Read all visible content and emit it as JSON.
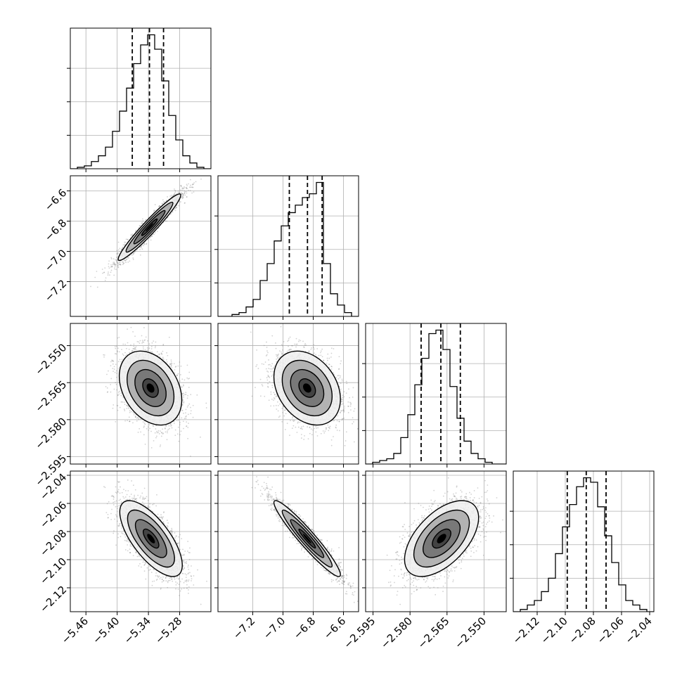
{
  "chart_data": {
    "type": "corner",
    "title": "",
    "legend": "none",
    "grid": true,
    "colors": {
      "hist": "#000000",
      "grid": "#b0b0b0",
      "axes": "#000000",
      "samples": "#7f7f7f"
    },
    "parameters": [
      {
        "id": "p1",
        "xlim": [
          -5.49,
          -5.22
        ],
        "ticks": [
          -5.46,
          -5.4,
          -5.34,
          -5.28
        ],
        "tick_labels": [
          "−5.46",
          "−5.40",
          "−5.34",
          "−5.28"
        ],
        "quantiles": {
          "q16": -5.371,
          "q50": -5.338,
          "q84": -5.311
        },
        "histogram": {
          "edges_range": [
            -5.49,
            -5.22
          ],
          "bins": 20,
          "counts": [
            0,
            1,
            2,
            5,
            9,
            15,
            26,
            40,
            56,
            73,
            86,
            93,
            83,
            61,
            37,
            20,
            9,
            4,
            1,
            0
          ]
        }
      },
      {
        "id": "p2",
        "xlim": [
          -7.43,
          -6.5
        ],
        "ticks": [
          -7.2,
          -7.0,
          -6.8,
          -6.6
        ],
        "tick_labels": [
          "−7.2",
          "−7.0",
          "−6.8",
          "−6.6"
        ],
        "quantiles": {
          "q16": -6.958,
          "q50": -6.838,
          "q84": -6.741
        },
        "histogram": {
          "edges_range": [
            -7.43,
            -6.5
          ],
          "bins": 20,
          "counts": [
            0,
            0,
            1,
            2,
            5,
            9,
            19,
            28,
            40,
            48,
            55,
            59,
            63,
            65,
            71,
            28,
            12,
            6,
            2,
            0
          ]
        }
      },
      {
        "id": "p3",
        "xlim": [
          -2.598,
          -2.541
        ],
        "ticks": [
          -2.595,
          -2.58,
          -2.565,
          -2.55
        ],
        "tick_labels": [
          "−2.595",
          "−2.580",
          "−2.565",
          "−2.550"
        ],
        "quantiles": {
          "q16": -2.5755,
          "q50": -2.5675,
          "q84": -2.5596
        },
        "histogram": {
          "edges_range": [
            -2.598,
            -2.541
          ],
          "bins": 20,
          "counts": [
            0,
            1,
            2,
            3,
            6,
            15,
            28,
            45,
            60,
            74,
            76,
            65,
            44,
            26,
            13,
            6,
            3,
            1,
            0,
            0
          ]
        }
      },
      {
        "id": "p4",
        "xlim": [
          -2.137,
          -2.037
        ],
        "ticks": [
          -2.12,
          -2.1,
          -2.08,
          -2.06,
          -2.04
        ],
        "tick_labels": [
          "−2.12",
          "−2.10",
          "−2.08",
          "−2.06",
          "−2.04"
        ],
        "quantiles": {
          "q16": -2.0986,
          "q50": -2.0851,
          "q84": -2.071
        },
        "histogram": {
          "edges_range": [
            -2.137,
            -2.037
          ],
          "bins": 20,
          "counts": [
            0,
            1,
            3,
            5,
            9,
            15,
            26,
            38,
            48,
            56,
            60,
            58,
            47,
            34,
            22,
            12,
            5,
            3,
            1,
            0
          ]
        }
      }
    ],
    "pairs": [
      {
        "row": 1,
        "col": 0,
        "mean": [
          -5.338,
          -6.84
        ],
        "sd": [
          0.03,
          0.11
        ],
        "rho": 0.96
      },
      {
        "row": 2,
        "col": 0,
        "mean": [
          -5.336,
          -2.5672
        ],
        "sd": [
          0.03,
          0.0075
        ],
        "rho": -0.32
      },
      {
        "row": 2,
        "col": 1,
        "mean": [
          -6.84,
          -2.5672
        ],
        "sd": [
          0.11,
          0.0075
        ],
        "rho": -0.3
      },
      {
        "row": 3,
        "col": 0,
        "mean": [
          -5.335,
          -2.085
        ],
        "sd": [
          0.03,
          0.0135
        ],
        "rho": -0.7
      },
      {
        "row": 3,
        "col": 1,
        "mean": [
          -6.84,
          -2.085
        ],
        "sd": [
          0.11,
          0.0135
        ],
        "rho": -0.95
      },
      {
        "row": 3,
        "col": 2,
        "mean": [
          -2.5672,
          -2.085
        ],
        "sd": [
          0.0075,
          0.0135
        ],
        "rho": 0.55
      }
    ],
    "contour_levels_sigma": [
      0.5,
      1.0,
      1.5,
      2.0
    ],
    "samples_per_panel": 2500
  }
}
